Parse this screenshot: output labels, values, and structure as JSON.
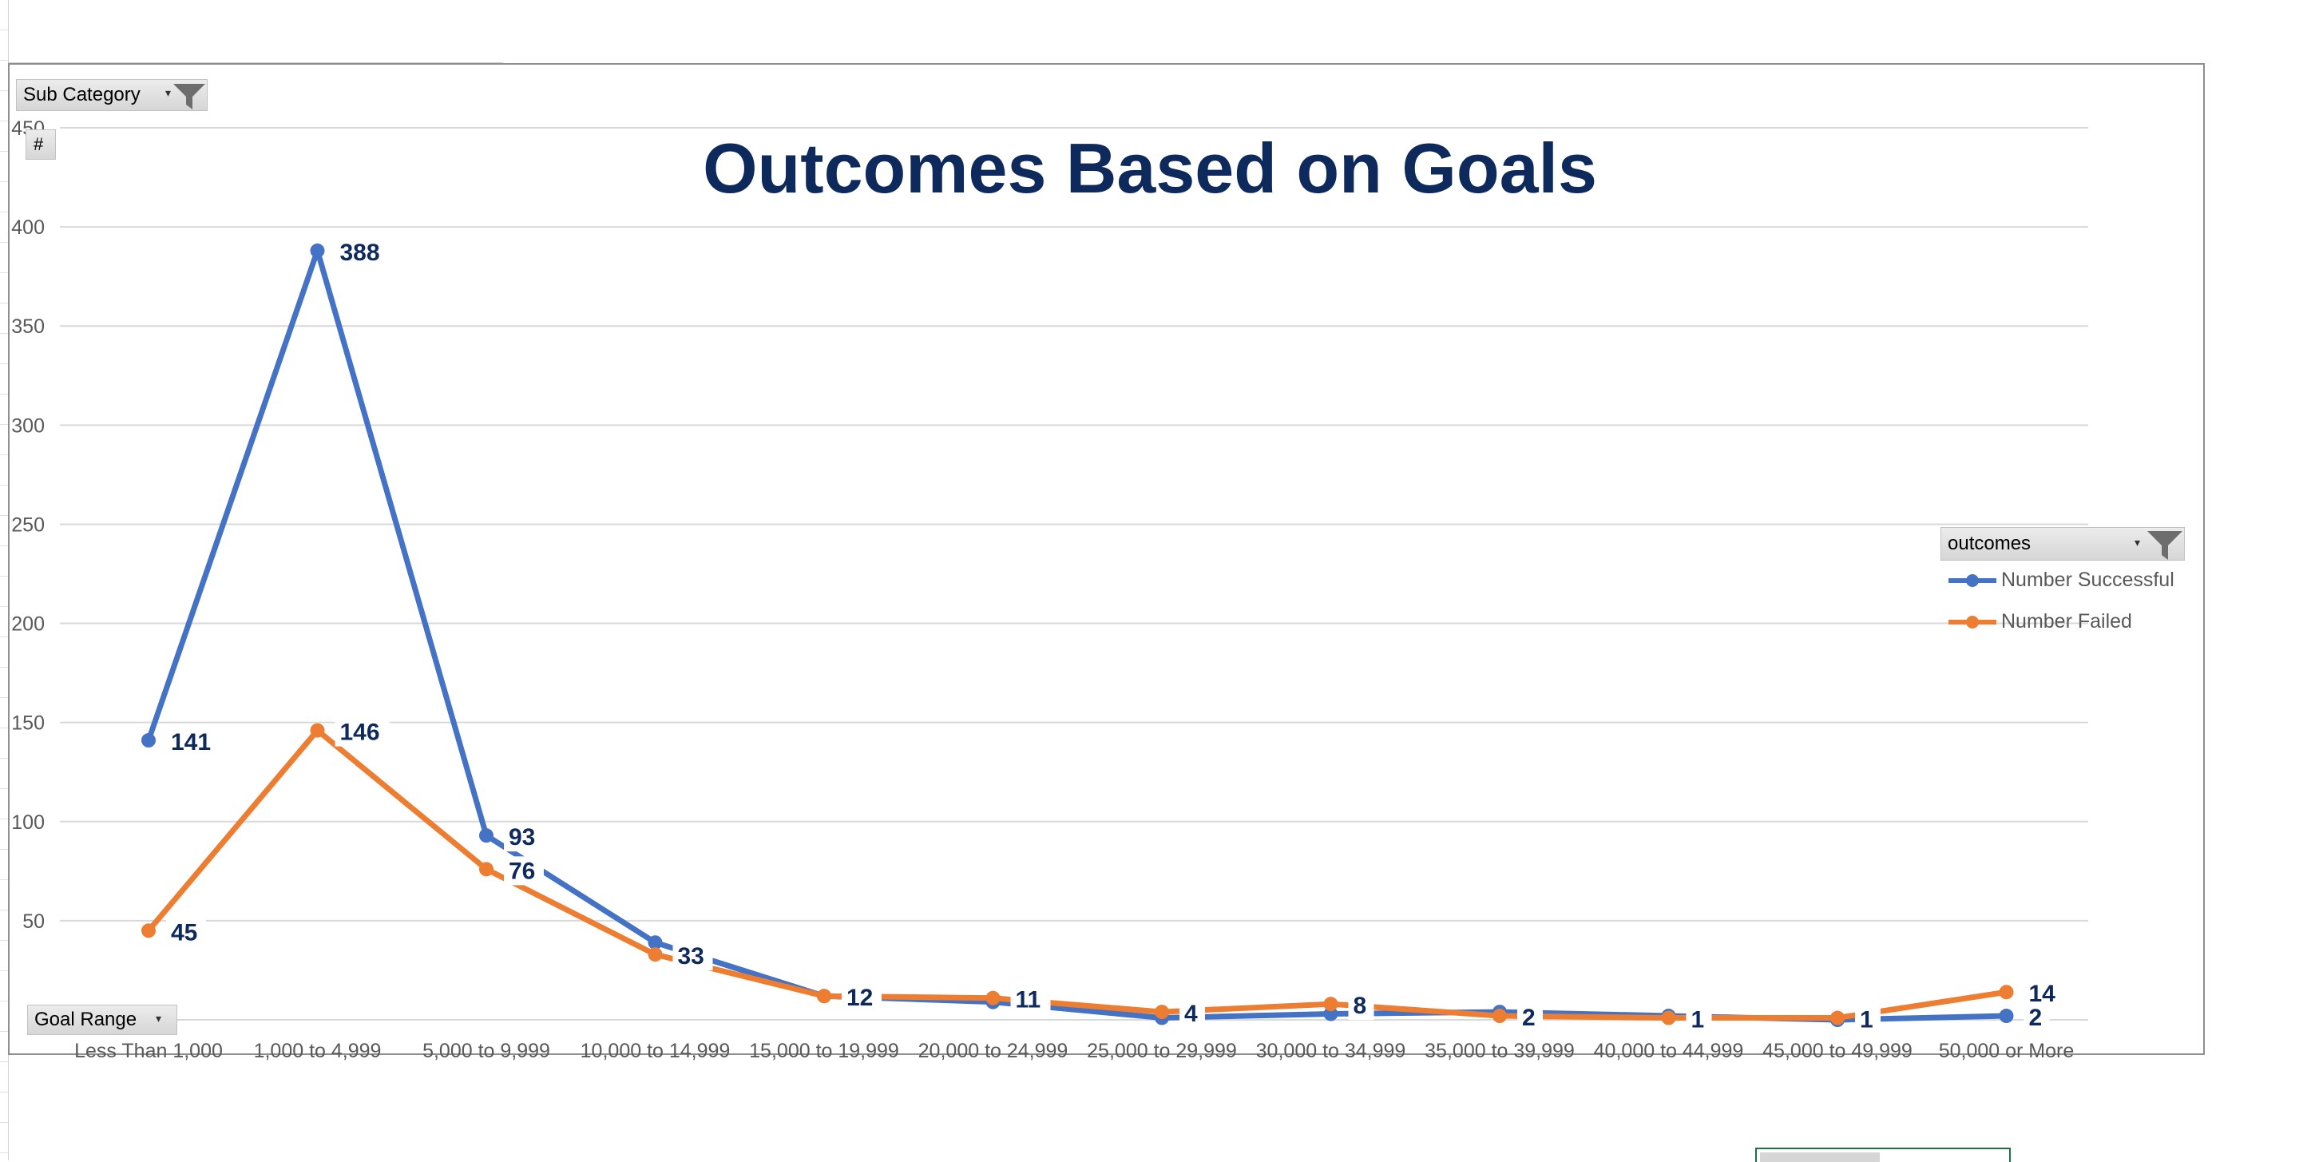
{
  "pivot": {
    "report_filter_label": "Sub Category",
    "value_field_label": "#",
    "axis_field_label": "Goal Range",
    "legend_field_label": "outcomes"
  },
  "legend": {
    "successful_label": "Number Successful",
    "failed_label": "Number Failed"
  },
  "colors": {
    "successful": "#4472C4",
    "failed": "#ED7D31",
    "title": "#0E2A5C",
    "data_label": "#0E2A5C",
    "gridline": "#D9D9D9",
    "tick": "#595959"
  },
  "chart_data": {
    "type": "line",
    "title": "Outcomes Based on Goals",
    "xlabel": "",
    "ylabel": "",
    "ylim": [
      0,
      450
    ],
    "yticks": [
      0,
      50,
      100,
      150,
      200,
      250,
      300,
      350,
      400,
      450
    ],
    "categories": [
      "Less Than 1,000",
      "1,000 to 4,999",
      "5,000 to 9,999",
      "10,000 to 14,999",
      "15,000 to 19,999",
      "20,000 to 24,999",
      "25,000 to 29,999",
      "30,000 to 34,999",
      "35,000 to 39,999",
      "40,000 to 44,999",
      "45,000 to 49,999",
      "50,000 or More"
    ],
    "series": [
      {
        "name": "Number Successful",
        "values": [
          141,
          388,
          93,
          39,
          12,
          9,
          1,
          3,
          4,
          2,
          0,
          2
        ]
      },
      {
        "name": "Number Failed",
        "values": [
          45,
          146,
          76,
          33,
          12,
          11,
          4,
          8,
          2,
          1,
          1,
          14
        ]
      }
    ],
    "data_labels": [
      {
        "category_index": 0,
        "value": 141,
        "series": 0
      },
      {
        "category_index": 1,
        "value": 388,
        "series": 0
      },
      {
        "category_index": 2,
        "value": 93,
        "series": 0
      },
      {
        "category_index": 11,
        "value": 2,
        "series": 0
      },
      {
        "category_index": 0,
        "value": 45,
        "series": 1
      },
      {
        "category_index": 1,
        "value": 146,
        "series": 1
      },
      {
        "category_index": 2,
        "value": 76,
        "series": 1
      },
      {
        "category_index": 3,
        "value": 33,
        "series": 1
      },
      {
        "category_index": 4,
        "value": 12,
        "series": 1
      },
      {
        "category_index": 5,
        "value": 11,
        "series": 1
      },
      {
        "category_index": 6,
        "value": 4,
        "series": 1
      },
      {
        "category_index": 7,
        "value": 8,
        "series": 1
      },
      {
        "category_index": 8,
        "value": 2,
        "series": 1
      },
      {
        "category_index": 9,
        "value": 1,
        "series": 1
      },
      {
        "category_index": 10,
        "value": 1,
        "series": 1
      },
      {
        "category_index": 11,
        "value": 14,
        "series": 1
      }
    ],
    "gridlines": true,
    "legend_position": "right"
  }
}
